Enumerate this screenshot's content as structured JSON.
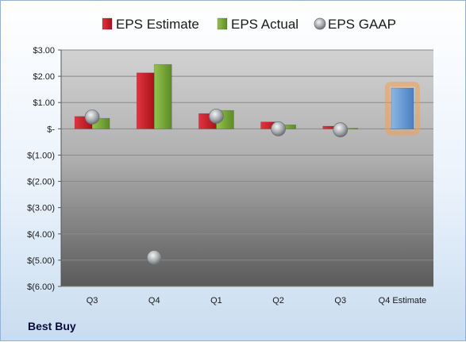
{
  "chart_data": {
    "type": "bar",
    "categories": [
      "Q3",
      "Q4",
      "Q1",
      "Q2",
      "Q3",
      "Q4 Estimate"
    ],
    "series": [
      {
        "name": "EPS Estimate",
        "values": [
          0.47,
          2.13,
          0.58,
          0.26,
          0.1,
          null
        ]
      },
      {
        "name": "EPS Actual",
        "values": [
          0.4,
          2.45,
          0.7,
          0.15,
          0.02,
          null
        ]
      },
      {
        "name": "EPS GAAP",
        "type": "scatter",
        "values": [
          0.45,
          -4.9,
          0.48,
          0.0,
          -0.04,
          null
        ]
      },
      {
        "name": "Q4 Estimate",
        "highlight": true,
        "values": [
          null,
          null,
          null,
          null,
          null,
          1.55
        ]
      }
    ],
    "ylim": [
      -6,
      3
    ],
    "yticks": [
      3,
      2,
      1,
      0,
      -1,
      -2,
      -3,
      -4,
      -5,
      -6
    ],
    "ytick_labels": [
      "$3.00",
      "$2.00",
      "$1.00",
      "$-",
      "$(1.00)",
      "$(2.00)",
      "$(3.00)",
      "$(4.00)",
      "$(5.00)",
      "$(6.00)"
    ],
    "grid": true,
    "legend": "top",
    "colors": {
      "estimate": "#c8202a",
      "actual": "#78a83a",
      "gaap": "#9aa0a8",
      "highlight_bar": "#6f9fd6",
      "highlight_glow": "#f0a050"
    }
  },
  "footer": {
    "company": "Best Buy"
  }
}
